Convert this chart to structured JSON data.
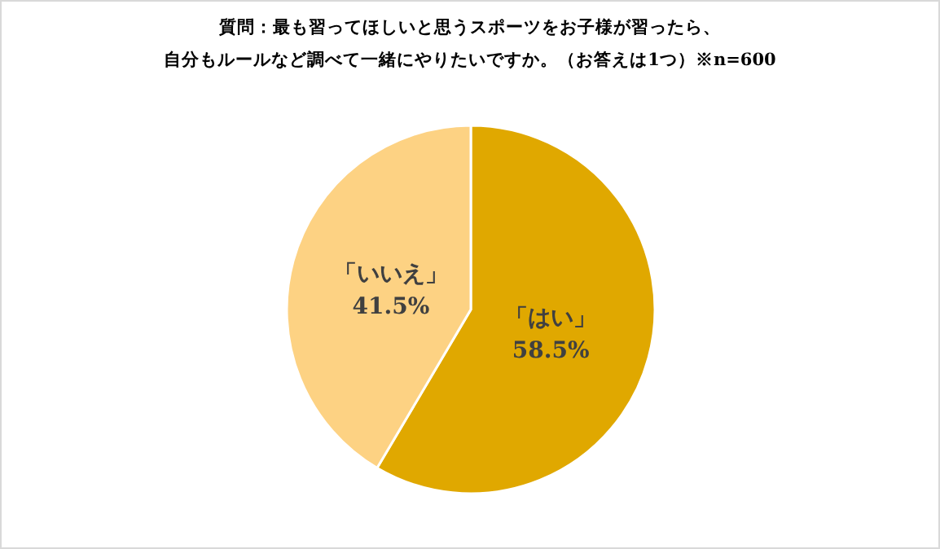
{
  "chart_data": {
    "type": "pie",
    "title": "質問：最も習ってほしいと思うスポーツをお子様が習ったら、",
    "subtitle": "自分もルールなど調べて一緒にやりたいですか。（お答えは1つ）※n=600",
    "categories": [
      "「はい」",
      "「いいえ」"
    ],
    "values": [
      58.5,
      41.5
    ],
    "colors": [
      "#e0a800",
      "#fdd283"
    ],
    "value_labels": [
      "58.5%",
      "41.5%"
    ],
    "legend": false
  }
}
